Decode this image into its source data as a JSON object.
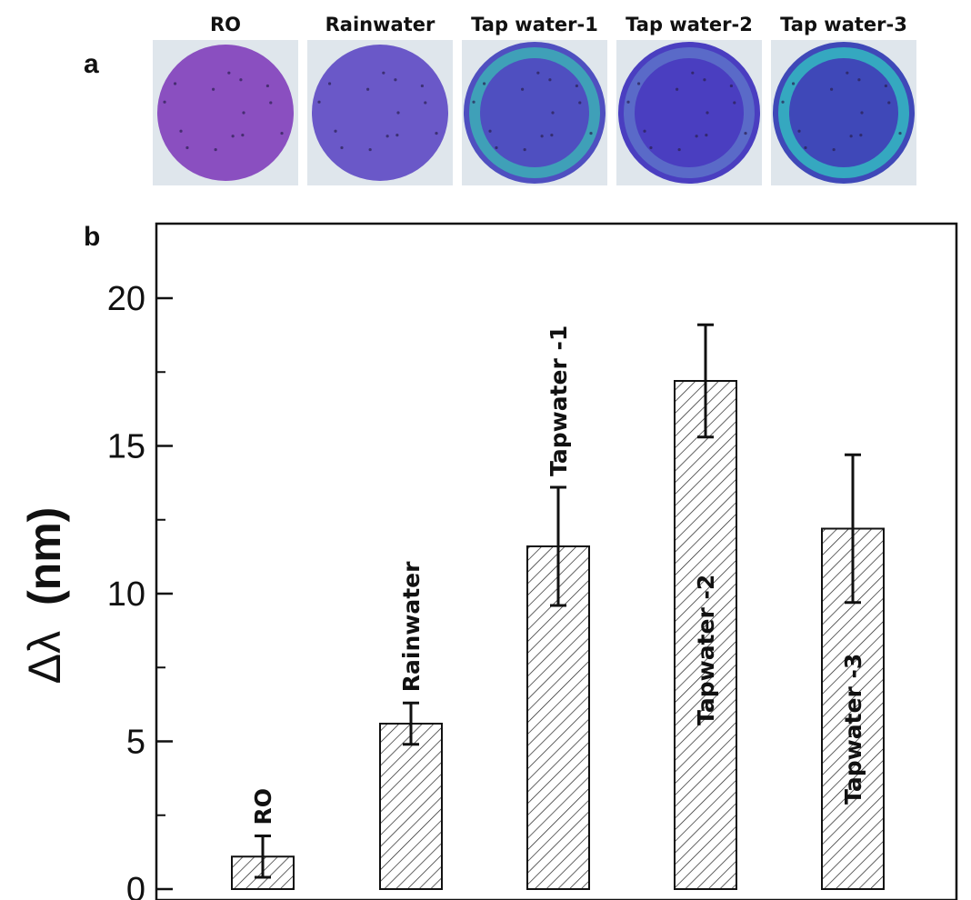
{
  "panel_a": {
    "letter": "a",
    "photos": [
      {
        "label": "RO",
        "fill": "#8a4fc0",
        "rim": null
      },
      {
        "label": "Rainwater",
        "fill": "#6a58c8",
        "rim": null
      },
      {
        "label": "Tap water-1",
        "fill": "#4f4fc0",
        "rim": "#3fa0b8"
      },
      {
        "label": "Tap water-2",
        "fill": "#4a3ec0",
        "rim": "#5a6ac8"
      },
      {
        "label": "Tap water-3",
        "fill": "#3f48b8",
        "rim": "#35a8c0"
      }
    ],
    "background_color": "#dfe6ec"
  },
  "panel_b": {
    "letter": "b"
  },
  "chart_data": {
    "type": "bar",
    "categories": [
      "RO",
      "Rainwater",
      "Tapwater -1",
      "Tapwater -2",
      "Tapwater -3"
    ],
    "series": [
      {
        "values": [
          1.1,
          5.6,
          11.6,
          17.2,
          12.2
        ],
        "errors": [
          0.7,
          0.7,
          2.0,
          1.9,
          2.5
        ]
      }
    ],
    "ylabel": {
      "symbol": "Δλ",
      "unit": "(nm)"
    },
    "ylim": [
      0,
      20
    ],
    "yticks": [
      0,
      5,
      10,
      15,
      20
    ],
    "bar_label_positions": [
      "above",
      "above",
      "above",
      "inside",
      "inside"
    ],
    "bar_fill": "hatched",
    "grid": false
  }
}
